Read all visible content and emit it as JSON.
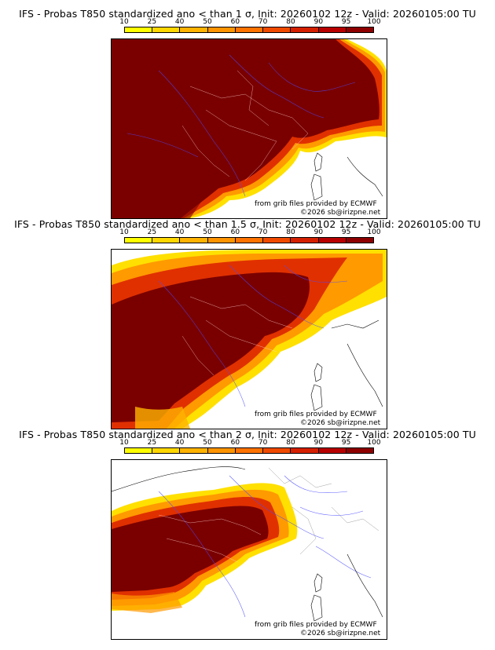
{
  "colorbar": {
    "ticks": [
      "10",
      "25",
      "40",
      "50",
      "60",
      "70",
      "80",
      "90",
      "95",
      "100"
    ],
    "colors": [
      "#ffff00",
      "#ffd700",
      "#ffb300",
      "#ff9400",
      "#ff7300",
      "#f04a00",
      "#d42000",
      "#b80000",
      "#8e0000"
    ]
  },
  "credits": {
    "source": "from grib files provided by ECMWF",
    "copyright": "©2026 sb@irizpne.net"
  },
  "panels": [
    {
      "title": "IFS - Probas T850  standardized ano < than 1 σ, Init: 20260102 12z - Valid: 20260105:00 TU"
    },
    {
      "title": "IFS - Probas T850  standardized ano < than 1.5 σ, Init: 20260102 12z - Valid: 20260105:00 TU"
    },
    {
      "title": "IFS - Probas T850  standardized ano < than 2 σ, Init: 20260102 12z - Valid: 20260105:00 TU"
    }
  ]
}
